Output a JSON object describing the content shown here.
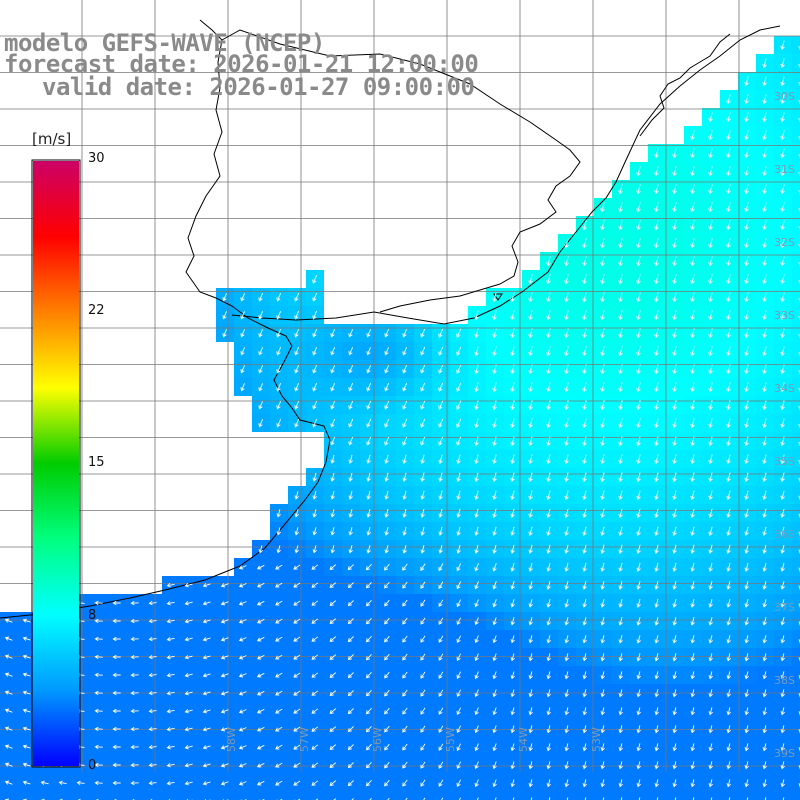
{
  "title": {
    "line1": "modelo GEFS-WAVE (NCEP)",
    "line2": "forecast date: 2026-01-21 12:00:00",
    "line3": "valid date: 2026-01-27 09:00:00"
  },
  "colorbar": {
    "unit": "[m/s]",
    "ticks": [
      "30",
      "22",
      "15",
      "8",
      "0"
    ],
    "min": 0,
    "max": 30,
    "colors": [
      "#0000ff",
      "#0099ff",
      "#00ffff",
      "#00ff80",
      "#00cc00",
      "#ffff00",
      "#ff8000",
      "#ff0000",
      "#cc0066"
    ]
  },
  "grid": {
    "lon_labels": [
      "58W",
      "57W",
      "56W",
      "55W",
      "54W",
      "53W"
    ],
    "lat_labels": [
      "30S",
      "31S",
      "32S",
      "33S",
      "34S",
      "35S",
      "36S",
      "37S",
      "38S",
      "39S"
    ]
  },
  "field": {
    "variable": "wind speed",
    "units": "m/s",
    "dominant_direction": "north-northeast to south-southwest",
    "speed_range": [
      3,
      9
    ]
  }
}
